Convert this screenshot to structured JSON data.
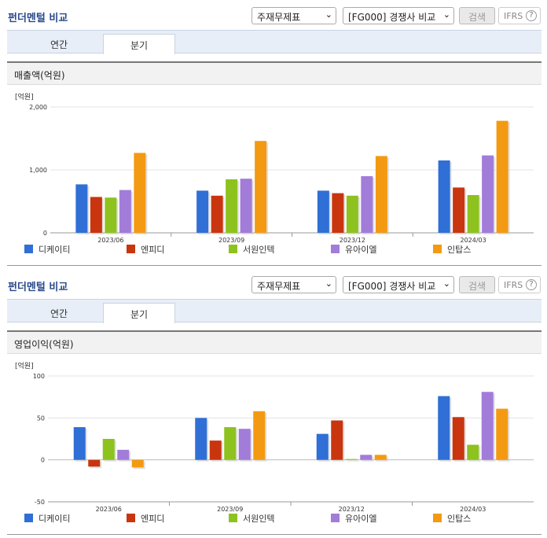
{
  "panels": [
    {
      "title": "펀더멘털 비교",
      "select1": "주재무제표",
      "select2": "[FG000] 경쟁사 비교",
      "search_label": "검색",
      "ifrs_label": "IFRS",
      "help_label": "?",
      "tabs": [
        {
          "label": "연간"
        },
        {
          "label": "분기"
        }
      ],
      "active_tab": 1,
      "section_title": "매출액(억원)"
    },
    {
      "title": "펀더멘털 비교",
      "select1": "주재무제표",
      "select2": "[FG000] 경쟁사 비교",
      "search_label": "검색",
      "ifrs_label": "IFRS",
      "help_label": "?",
      "tabs": [
        {
          "label": "연간"
        },
        {
          "label": "분기"
        }
      ],
      "active_tab": 1,
      "section_title": "영업이익(억원)"
    }
  ],
  "chart_data": [
    {
      "type": "bar",
      "unit_label": "[억원]",
      "categories": [
        "2023/06",
        "2023/09",
        "2023/12",
        "2024/03"
      ],
      "ylim": [
        0,
        2000
      ],
      "yticks": [
        0,
        1000,
        2000
      ],
      "ytick_labels": [
        "0",
        "1,000",
        "2,000"
      ],
      "grid": true,
      "legend_position": "bottom",
      "series": [
        {
          "name": "디케이티",
          "color": "#2f6fd6",
          "values": [
            770,
            670,
            670,
            1150
          ]
        },
        {
          "name": "엔피디",
          "color": "#c9350f",
          "values": [
            570,
            590,
            630,
            720
          ]
        },
        {
          "name": "서원인텍",
          "color": "#8dc21f",
          "values": [
            560,
            850,
            590,
            600
          ]
        },
        {
          "name": "유아이엘",
          "color": "#a27cd9",
          "values": [
            680,
            860,
            900,
            1230
          ]
        },
        {
          "name": "인탑스",
          "color": "#f39a12",
          "values": [
            1270,
            1460,
            1220,
            1780
          ]
        }
      ]
    },
    {
      "type": "bar",
      "unit_label": "[억원]",
      "categories": [
        "2023/06",
        "2023/09",
        "2023/12",
        "2024/03"
      ],
      "ylim": [
        -50,
        100
      ],
      "yticks": [
        -50,
        0,
        50,
        100
      ],
      "ytick_labels": [
        "-50",
        "0",
        "50",
        "100"
      ],
      "grid": true,
      "legend_position": "bottom",
      "series": [
        {
          "name": "디케이티",
          "color": "#2f6fd6",
          "values": [
            39,
            50,
            31,
            76
          ]
        },
        {
          "name": "엔피디",
          "color": "#c9350f",
          "values": [
            -8,
            23,
            47,
            51
          ]
        },
        {
          "name": "서원인텍",
          "color": "#8dc21f",
          "values": [
            25,
            39,
            1,
            18
          ]
        },
        {
          "name": "유아이엘",
          "color": "#a27cd9",
          "values": [
            12,
            37,
            6,
            81
          ]
        },
        {
          "name": "인탑스",
          "color": "#f39a12",
          "values": [
            -9,
            58,
            6,
            61
          ]
        }
      ]
    }
  ]
}
